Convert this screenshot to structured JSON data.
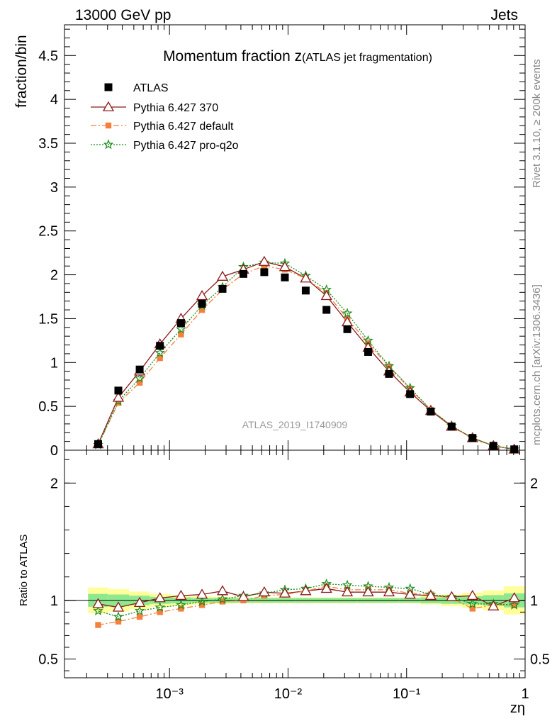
{
  "header": {
    "energy_label": "13000 GeV pp",
    "category_label": "Jets",
    "side_label_top": "Rivet 3.1.10, ≥ 200k events",
    "side_label_bottom": "mcplots.cern.ch [arXiv:1306.3436]",
    "analysis_label": "ATLAS_2019_I1740909"
  },
  "chart_data": [
    {
      "type": "scatter",
      "panel": "main",
      "title_main": "Momentum fraction z",
      "title_sub": "(ATLAS jet fragmentation)",
      "ylabel": "fraction/bin",
      "xscale": "log",
      "xlim": [
        0.00013,
        1.0
      ],
      "ylim": [
        0,
        4.85
      ],
      "yticks": [
        0,
        0.5,
        1,
        1.5,
        2,
        2.5,
        3,
        3.5,
        4,
        4.5
      ],
      "ytick_labels": [
        "0",
        "0.5",
        "1",
        "1.5",
        "2",
        "2.5",
        "3",
        "3.5",
        "4",
        "4.5"
      ],
      "legend_position": "top-left",
      "x": [
        0.00025,
        0.00037,
        0.00056,
        0.00083,
        0.00125,
        0.00188,
        0.0028,
        0.0042,
        0.0063,
        0.0094,
        0.0141,
        0.0211,
        0.0316,
        0.0474,
        0.0711,
        0.107,
        0.16,
        0.24,
        0.36,
        0.54,
        0.81
      ],
      "series": [
        {
          "name": "ATLAS",
          "color": "#000000",
          "marker": "square",
          "values": [
            0.07,
            0.68,
            0.92,
            1.19,
            1.45,
            1.67,
            1.84,
            2.01,
            2.03,
            1.97,
            1.82,
            1.6,
            1.38,
            1.12,
            0.87,
            0.64,
            0.44,
            0.27,
            0.14,
            0.05,
            0.01
          ]
        },
        {
          "name": "Pythia 6.427 370",
          "color": "#8b1a1a",
          "marker": "open-triangle",
          "linestyle": "solid",
          "values": [
            0.07,
            0.6,
            0.9,
            1.21,
            1.5,
            1.76,
            1.98,
            2.06,
            2.15,
            2.09,
            1.96,
            1.76,
            1.46,
            1.17,
            0.9,
            0.66,
            0.45,
            0.27,
            0.14,
            0.05,
            0.01
          ]
        },
        {
          "name": "Pythia 6.427 default",
          "color": "#f5803e",
          "marker": "square",
          "linestyle": "dashdot",
          "values": [
            0.06,
            0.54,
            0.77,
            1.05,
            1.32,
            1.6,
            1.83,
            2.01,
            2.1,
            2.06,
            1.96,
            1.79,
            1.5,
            1.22,
            0.95,
            0.7,
            0.46,
            0.28,
            0.13,
            0.05,
            0.01
          ]
        },
        {
          "name": "Pythia 6.427 pro-q2o",
          "color": "#1a8a1a",
          "marker": "open-star",
          "linestyle": "dotted",
          "values": [
            0.06,
            0.56,
            0.82,
            1.11,
            1.38,
            1.65,
            1.86,
            2.09,
            2.14,
            2.13,
            1.99,
            1.83,
            1.56,
            1.25,
            0.96,
            0.71,
            0.46,
            0.28,
            0.14,
            0.05,
            0.01
          ]
        }
      ]
    },
    {
      "type": "line",
      "panel": "ratio",
      "ylabel": "Ratio to ATLAS",
      "xlabel": "zη",
      "xscale": "log",
      "xlim": [
        0.00013,
        1.0
      ],
      "ylim": [
        0.34,
        2.28
      ],
      "yticks": [
        0.5,
        1,
        2
      ],
      "ytick_labels": [
        "0.5",
        "1",
        "2"
      ],
      "xtick_labels": [
        "10⁻³",
        "10⁻²",
        "10⁻¹",
        "1"
      ],
      "x": [
        0.00025,
        0.00037,
        0.00056,
        0.00083,
        0.00125,
        0.00188,
        0.0028,
        0.0042,
        0.0063,
        0.0094,
        0.0141,
        0.0211,
        0.0316,
        0.0474,
        0.0711,
        0.107,
        0.16,
        0.24,
        0.36,
        0.54,
        0.81
      ],
      "band_inner": [
        0.055,
        0.05,
        0.04,
        0.03,
        0.025,
        0.02,
        0.02,
        0.02,
        0.02,
        0.02,
        0.02,
        0.02,
        0.02,
        0.02,
        0.02,
        0.02,
        0.025,
        0.03,
        0.035,
        0.045,
        0.06
      ],
      "band_outer": [
        0.11,
        0.095,
        0.075,
        0.055,
        0.045,
        0.035,
        0.03,
        0.025,
        0.025,
        0.025,
        0.025,
        0.025,
        0.025,
        0.025,
        0.025,
        0.025,
        0.035,
        0.05,
        0.065,
        0.085,
        0.12
      ],
      "series": [
        {
          "name": "Pythia 6.427 370",
          "color": "#8b1a1a",
          "marker": "open-triangle",
          "linestyle": "solid",
          "values": [
            0.97,
            0.94,
            0.98,
            1.02,
            1.04,
            1.05,
            1.08,
            1.03,
            1.07,
            1.06,
            1.08,
            1.1,
            1.07,
            1.07,
            1.07,
            1.05,
            1.04,
            1.03,
            1.04,
            0.95,
            1.02
          ]
        },
        {
          "name": "Pythia 6.427 default",
          "color": "#f5803e",
          "marker": "square",
          "linestyle": "dashdot",
          "values": [
            0.79,
            0.82,
            0.86,
            0.9,
            0.93,
            0.96,
            0.99,
            1.0,
            1.04,
            1.05,
            1.08,
            1.12,
            1.09,
            1.09,
            1.09,
            1.06,
            1.05,
            1.02,
            0.93,
            0.96,
            0.96
          ]
        },
        {
          "name": "Pythia 6.427 pro-q2o",
          "color": "#1a8a1a",
          "marker": "open-star",
          "linestyle": "dotted",
          "values": [
            0.91,
            0.86,
            0.91,
            0.94,
            0.96,
            0.99,
            1.01,
            1.04,
            1.06,
            1.09,
            1.1,
            1.14,
            1.13,
            1.12,
            1.11,
            1.1,
            1.05,
            1.03,
            0.97,
            0.97,
            0.96
          ]
        }
      ]
    }
  ]
}
